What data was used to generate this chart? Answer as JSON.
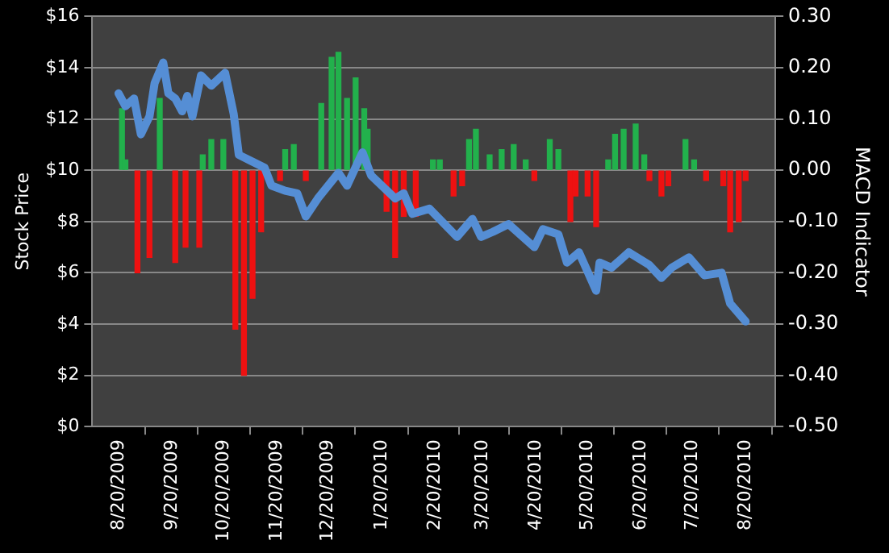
{
  "chart_data": {
    "type": "line",
    "ylabel": "Stock Price",
    "y2label": "MACD Indicator",
    "xlim": [
      "2009-08-20",
      "2010-08-22"
    ],
    "xticks": [
      {
        "value": "2009-08-20",
        "label": "8/20/2009"
      },
      {
        "value": "2009-09-20",
        "label": "9/20/2009"
      },
      {
        "value": "2009-10-20",
        "label": "10/20/2009"
      },
      {
        "value": "2009-11-20",
        "label": "11/20/2009"
      },
      {
        "value": "2009-12-20",
        "label": "12/20/2009"
      },
      {
        "value": "2010-01-20",
        "label": "1/20/2010"
      },
      {
        "value": "2010-02-20",
        "label": "2/20/2010"
      },
      {
        "value": "2010-03-20",
        "label": "3/20/2010"
      },
      {
        "value": "2010-04-20",
        "label": "4/20/2010"
      },
      {
        "value": "2010-05-20",
        "label": "5/20/2010"
      },
      {
        "value": "2010-06-20",
        "label": "6/20/2010"
      },
      {
        "value": "2010-07-20",
        "label": "7/20/2010"
      },
      {
        "value": "2010-08-20",
        "label": "8/20/2010"
      }
    ],
    "ylim": [
      0,
      16
    ],
    "yticks": [
      {
        "value": 0,
        "label": "$0"
      },
      {
        "value": 2,
        "label": "$2"
      },
      {
        "value": 4,
        "label": "$4"
      },
      {
        "value": 6,
        "label": "$6"
      },
      {
        "value": 8,
        "label": "$8"
      },
      {
        "value": 10,
        "label": "$10"
      },
      {
        "value": 12,
        "label": "$12"
      },
      {
        "value": 14,
        "label": "$14"
      },
      {
        "value": 16,
        "label": "$16"
      }
    ],
    "y2lim": [
      -0.5,
      0.3
    ],
    "y2ticks": [
      {
        "value": -0.5,
        "label": "-0.50"
      },
      {
        "value": -0.4,
        "label": "-0.40"
      },
      {
        "value": -0.3,
        "label": "-0.30"
      },
      {
        "value": -0.2,
        "label": "-0.20"
      },
      {
        "value": -0.1,
        "label": "-0.10"
      },
      {
        "value": 0,
        "label": "0.00"
      },
      {
        "value": 0.1,
        "label": "0.10"
      },
      {
        "value": 0.2,
        "label": "0.20"
      },
      {
        "value": 0.3,
        "label": "0.30"
      }
    ],
    "grid": "y",
    "legend": false,
    "series": [
      {
        "type": "bar",
        "axis": "y2",
        "x": [
          "2009-08-22",
          "2009-08-24",
          "2009-08-31",
          "2009-09-07",
          "2009-09-13",
          "2009-09-22",
          "2009-09-28",
          "2009-10-06",
          "2009-10-08",
          "2009-10-13",
          "2009-10-20",
          "2009-10-27",
          "2009-11-01",
          "2009-11-06",
          "2009-11-11",
          "2009-11-22",
          "2009-11-25",
          "2009-11-30",
          "2009-12-07",
          "2009-12-16",
          "2009-12-22",
          "2009-12-26",
          "2009-12-31",
          "2010-01-05",
          "2010-01-10",
          "2010-01-12",
          "2010-01-23",
          "2010-01-28",
          "2010-02-02",
          "2010-02-09",
          "2010-02-19",
          "2010-02-23",
          "2010-03-03",
          "2010-03-08",
          "2010-03-12",
          "2010-03-16",
          "2010-03-24",
          "2010-03-31",
          "2010-04-07",
          "2010-04-14",
          "2010-04-19",
          "2010-04-28",
          "2010-05-03",
          "2010-05-10",
          "2010-05-13",
          "2010-05-20",
          "2010-05-25",
          "2010-06-01",
          "2010-06-05",
          "2010-06-10",
          "2010-06-17",
          "2010-06-22",
          "2010-06-25",
          "2010-07-02",
          "2010-07-06",
          "2010-07-16",
          "2010-07-21",
          "2010-07-28",
          "2010-08-07",
          "2010-08-11",
          "2010-08-16",
          "2010-08-20"
        ],
        "values": [
          0.12,
          0.02,
          -0.2,
          -0.17,
          0.14,
          -0.18,
          -0.15,
          -0.15,
          0.03,
          0.06,
          0.06,
          -0.31,
          -0.4,
          -0.25,
          -0.12,
          -0.02,
          0.04,
          0.05,
          -0.02,
          0.13,
          0.22,
          0.23,
          0.14,
          0.18,
          0.12,
          0.08,
          -0.08,
          -0.17,
          -0.09,
          -0.09,
          0.02,
          0.02,
          -0.05,
          -0.03,
          0.06,
          0.08,
          0.03,
          0.04,
          0.05,
          0.02,
          -0.02,
          0.06,
          0.04,
          -0.1,
          -0.05,
          -0.05,
          -0.11,
          0.02,
          0.07,
          0.08,
          0.09,
          0.03,
          -0.02,
          -0.05,
          -0.03,
          0.06,
          0.02,
          -0.02,
          -0.03,
          -0.12,
          -0.1,
          -0.02
        ],
        "colors": [
          "#22b14c",
          "#22b14c",
          "#ee1111",
          "#ee1111",
          "#22b14c",
          "#ee1111",
          "#ee1111",
          "#ee1111",
          "#22b14c",
          "#22b14c",
          "#22b14c",
          "#ee1111",
          "#ee1111",
          "#ee1111",
          "#ee1111",
          "#ee1111",
          "#22b14c",
          "#22b14c",
          "#ee1111",
          "#22b14c",
          "#22b14c",
          "#22b14c",
          "#22b14c",
          "#22b14c",
          "#22b14c",
          "#22b14c",
          "#ee1111",
          "#ee1111",
          "#ee1111",
          "#ee1111",
          "#22b14c",
          "#22b14c",
          "#ee1111",
          "#ee1111",
          "#22b14c",
          "#22b14c",
          "#22b14c",
          "#22b14c",
          "#22b14c",
          "#22b14c",
          "#ee1111",
          "#22b14c",
          "#22b14c",
          "#ee1111",
          "#ee1111",
          "#ee1111",
          "#ee1111",
          "#22b14c",
          "#22b14c",
          "#22b14c",
          "#22b14c",
          "#22b14c",
          "#ee1111",
          "#ee1111",
          "#ee1111",
          "#22b14c",
          "#22b14c",
          "#ee1111",
          "#ee1111",
          "#ee1111",
          "#ee1111",
          "#ee1111"
        ]
      },
      {
        "color": "#558ed5",
        "x": [
          "2009-08-20",
          "2009-08-24",
          "2009-08-29",
          "2009-09-02",
          "2009-09-07",
          "2009-09-10",
          "2009-09-15",
          "2009-09-18",
          "2009-09-22",
          "2009-09-26",
          "2009-09-29",
          "2009-10-02",
          "2009-10-07",
          "2009-10-13",
          "2009-10-21",
          "2009-10-26",
          "2009-10-29",
          "2009-11-04",
          "2009-11-13",
          "2009-11-17",
          "2009-11-25",
          "2009-12-02",
          "2009-12-07",
          "2009-12-14",
          "2009-12-26",
          "2009-12-31",
          "2010-01-09",
          "2010-01-14",
          "2010-01-28",
          "2010-02-02",
          "2010-02-07",
          "2010-02-17",
          "2010-03-05",
          "2010-03-14",
          "2010-03-19",
          "2010-03-26",
          "2010-04-04",
          "2010-04-19",
          "2010-04-24",
          "2010-05-03",
          "2010-05-08",
          "2010-05-15",
          "2010-05-25",
          "2010-05-27",
          "2010-06-03",
          "2010-06-13",
          "2010-06-25",
          "2010-07-02",
          "2010-07-08",
          "2010-07-18",
          "2010-07-27",
          "2010-08-06",
          "2010-08-11",
          "2010-08-20"
        ],
        "values": [
          13.0,
          12.5,
          12.8,
          11.4,
          12.1,
          13.4,
          14.2,
          13.0,
          12.8,
          12.3,
          12.9,
          12.1,
          13.7,
          13.3,
          13.8,
          12.2,
          10.6,
          10.4,
          10.1,
          9.4,
          9.2,
          9.1,
          8.2,
          8.9,
          9.9,
          9.4,
          10.7,
          9.8,
          8.9,
          9.1,
          8.3,
          8.5,
          7.4,
          8.1,
          7.4,
          7.6,
          7.9,
          7.0,
          7.7,
          7.5,
          6.4,
          6.8,
          5.3,
          6.4,
          6.2,
          6.8,
          6.3,
          5.8,
          6.2,
          6.6,
          5.9,
          6.0,
          4.8,
          4.1
        ]
      }
    ]
  }
}
